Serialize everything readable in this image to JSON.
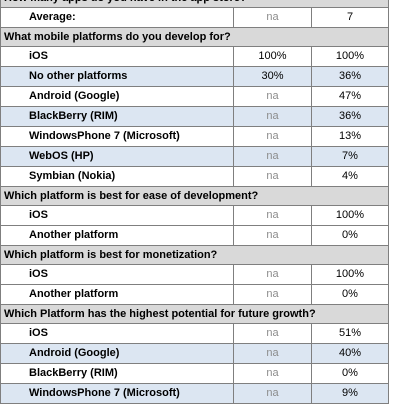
{
  "sections": [
    {
      "question": "How many apps do you have in the app store?",
      "rows": [
        {
          "label": "Average:",
          "col1": "na",
          "col2": "7",
          "alt": false
        }
      ]
    },
    {
      "question": "What mobile platforms do you develop for?",
      "rows": [
        {
          "label": "iOS",
          "col1": "100%",
          "col2": "100%",
          "alt": false
        },
        {
          "label": "No other platforms",
          "col1": "30%",
          "col2": "36%",
          "alt": true
        },
        {
          "label": "Android (Google)",
          "col1": "na",
          "col2": "47%",
          "alt": false
        },
        {
          "label": "BlackBerry (RIM)",
          "col1": "na",
          "col2": "36%",
          "alt": true
        },
        {
          "label": "WindowsPhone 7 (Microsoft)",
          "col1": "na",
          "col2": "13%",
          "alt": false
        },
        {
          "label": "WebOS (HP)",
          "col1": "na",
          "col2": "7%",
          "alt": true
        },
        {
          "label": "Symbian (Nokia)",
          "col1": "na",
          "col2": "4%",
          "alt": false
        }
      ]
    },
    {
      "question": "Which platform is best for ease of development?",
      "rows": [
        {
          "label": "iOS",
          "col1": "na",
          "col2": "100%",
          "alt": false
        },
        {
          "label": "Another platform",
          "col1": "na",
          "col2": "0%",
          "alt": false
        }
      ]
    },
    {
      "question": "Which platform is best for monetization?",
      "rows": [
        {
          "label": "iOS",
          "col1": "na",
          "col2": "100%",
          "alt": false
        },
        {
          "label": "Another platform",
          "col1": "na",
          "col2": "0%",
          "alt": false
        }
      ]
    },
    {
      "question": "Which Platform has the highest potential for future growth?",
      "rows": [
        {
          "label": "iOS",
          "col1": "na",
          "col2": "51%",
          "alt": false
        },
        {
          "label": "Android (Google)",
          "col1": "na",
          "col2": "40%",
          "alt": true
        },
        {
          "label": "BlackBerry (RIM)",
          "col1": "na",
          "col2": "0%",
          "alt": false
        },
        {
          "label": "WindowsPhone 7 (Microsoft)",
          "col1": "na",
          "col2": "9%",
          "alt": true
        }
      ]
    }
  ],
  "colors": {
    "question_bg": "#d9d9d9",
    "alt_row_bg": "#dce6f2",
    "border": "#7f7f7f",
    "na_text": "#8c8c8c"
  }
}
